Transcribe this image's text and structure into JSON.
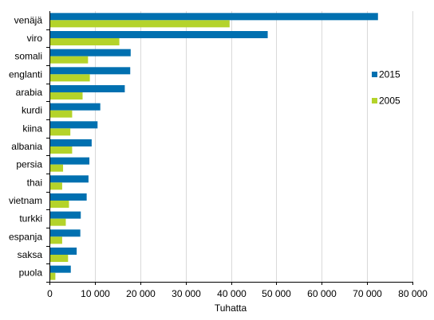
{
  "chart_data": {
    "type": "bar",
    "orientation": "horizontal",
    "categories": [
      "venäjä",
      "viro",
      "somali",
      "englanti",
      "arabia",
      "kurdi",
      "kiina",
      "albania",
      "persia",
      "thai",
      "vietnam",
      "turkki",
      "espanja",
      "saksa",
      "puola"
    ],
    "series": [
      {
        "name": "2015",
        "color": "#0070b0",
        "values": [
          72400,
          48100,
          17900,
          17800,
          16600,
          11200,
          10600,
          9300,
          8800,
          8600,
          8200,
          6900,
          6800,
          6000,
          4700
        ]
      },
      {
        "name": "2005",
        "color": "#b4d32a",
        "values": [
          39700,
          15400,
          8500,
          8900,
          7300,
          5000,
          4600,
          5000,
          3000,
          2800,
          4300,
          3600,
          2800,
          4100,
          1300
        ]
      }
    ],
    "xlabel": "Tuhatta",
    "xlim": [
      0,
      80000
    ],
    "xticks": [
      0,
      10000,
      20000,
      30000,
      40000,
      50000,
      60000,
      70000,
      80000
    ],
    "xtick_labels": [
      "0",
      "10 000",
      "20 000",
      "30 000",
      "40 000",
      "50 000",
      "60 000",
      "70 000",
      "80 000"
    ],
    "grid": true,
    "legend_position": "right"
  }
}
